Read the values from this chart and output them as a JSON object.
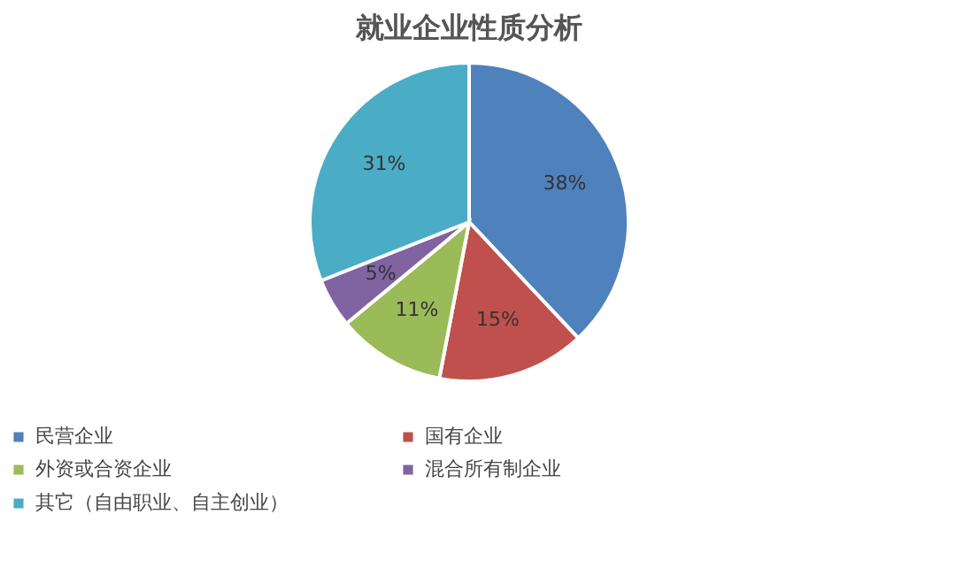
{
  "chart_data": {
    "type": "pie",
    "title": "就业企业性质分析",
    "categories": [
      "民营企业",
      "国有企业",
      "外资或合资企业",
      "混合所有制企业",
      "其它（自由职业、自主创业）"
    ],
    "values": [
      38,
      15,
      11,
      5,
      31
    ],
    "colors": [
      "#4f81bd",
      "#c0504d",
      "#9bbb59",
      "#8064a2",
      "#4bacc6"
    ],
    "value_labels": [
      "38%",
      "15%",
      "11%",
      "5%",
      "31%"
    ],
    "legend": "bottom"
  }
}
